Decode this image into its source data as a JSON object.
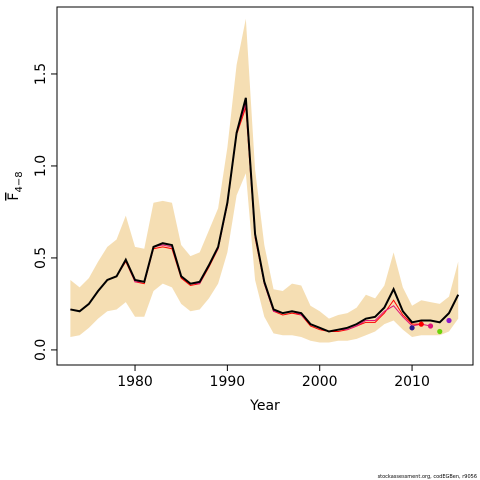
{
  "chart_data": {
    "type": "line",
    "xlabel": "Year",
    "ylabel": "F",
    "ylabel_sub": "4−8",
    "footer": "stockassessment.org, codEGBen, r9056",
    "xlim": [
      1971.55,
      2016.6
    ],
    "ylim": [
      -0.082,
      1.864
    ],
    "xticks": [
      1980,
      1990,
      2000,
      2010
    ],
    "yticks": [
      {
        "value": 0,
        "label": "0.0"
      },
      {
        "value": 0.5,
        "label": "0.5"
      },
      {
        "value": 1,
        "label": "1.0"
      },
      {
        "value": 1.5,
        "label": "1.5"
      }
    ],
    "x": [
      1973,
      1974,
      1975,
      1976,
      1977,
      1978,
      1979,
      1980,
      1981,
      1982,
      1983,
      1984,
      1985,
      1986,
      1987,
      1988,
      1989,
      1990,
      1991,
      1992,
      1993,
      1994,
      1995,
      1996,
      1997,
      1998,
      1999,
      2000,
      2001,
      2002,
      2003,
      2004,
      2005,
      2006,
      2007,
      2008,
      2009,
      2010,
      2011,
      2012,
      2013,
      2014,
      2015
    ],
    "band": {
      "color": "#f5deb3",
      "upper": [
        0.38,
        0.34,
        0.39,
        0.48,
        0.56,
        0.6,
        0.73,
        0.56,
        0.55,
        0.8,
        0.81,
        0.8,
        0.57,
        0.51,
        0.53,
        0.65,
        0.77,
        1.1,
        1.55,
        1.8,
        0.98,
        0.57,
        0.33,
        0.32,
        0.36,
        0.35,
        0.24,
        0.21,
        0.17,
        0.19,
        0.2,
        0.23,
        0.3,
        0.28,
        0.35,
        0.53,
        0.34,
        0.24,
        0.27,
        0.26,
        0.25,
        0.29,
        0.48
      ],
      "lower": [
        0.07,
        0.08,
        0.12,
        0.17,
        0.21,
        0.22,
        0.26,
        0.18,
        0.18,
        0.32,
        0.36,
        0.34,
        0.25,
        0.21,
        0.22,
        0.28,
        0.36,
        0.53,
        0.84,
        0.96,
        0.38,
        0.18,
        0.09,
        0.08,
        0.08,
        0.07,
        0.05,
        0.04,
        0.04,
        0.05,
        0.05,
        0.06,
        0.08,
        0.1,
        0.14,
        0.16,
        0.11,
        0.07,
        0.08,
        0.08,
        0.08,
        0.1,
        0.17
      ]
    },
    "series": [
      {
        "color": "#ff0000",
        "width": 1,
        "values": [
          0.22,
          0.21,
          0.25,
          0.32,
          0.38,
          0.4,
          0.48,
          0.37,
          0.36,
          0.55,
          0.56,
          0.55,
          0.39,
          0.35,
          0.36,
          0.45,
          0.55,
          0.79,
          1.17,
          1.32,
          0.61,
          0.36,
          0.21,
          0.19,
          0.2,
          0.19,
          0.13,
          0.11,
          0.1,
          0.1,
          0.11,
          0.13,
          0.15,
          0.15,
          0.2,
          0.27,
          0.19,
          0.14,
          0.14,
          null,
          null,
          null,
          null
        ]
      },
      {
        "color": "#e0157a",
        "width": 1,
        "values": [
          0.22,
          0.21,
          0.25,
          0.32,
          0.38,
          0.4,
          0.49,
          0.37,
          0.37,
          0.56,
          0.57,
          0.56,
          0.4,
          0.36,
          0.36,
          0.46,
          0.55,
          0.79,
          1.18,
          1.34,
          0.62,
          0.36,
          0.21,
          0.2,
          0.21,
          0.19,
          0.14,
          0.12,
          0.1,
          0.11,
          0.11,
          0.13,
          0.16,
          0.16,
          0.21,
          0.24,
          0.18,
          0.13,
          0.14,
          0.13,
          null,
          null,
          null
        ]
      },
      {
        "color": "#000000",
        "width": 2,
        "values": [
          0.22,
          0.21,
          0.25,
          0.32,
          0.38,
          0.4,
          0.49,
          0.38,
          0.37,
          0.56,
          0.58,
          0.57,
          0.4,
          0.36,
          0.37,
          0.46,
          0.56,
          0.8,
          1.18,
          1.37,
          0.63,
          0.37,
          0.22,
          0.2,
          0.21,
          0.2,
          0.14,
          0.12,
          0.1,
          0.11,
          0.12,
          0.14,
          0.17,
          0.18,
          0.23,
          0.33,
          0.21,
          0.15,
          0.16,
          0.16,
          0.15,
          0.2,
          0.3
        ]
      }
    ],
    "points": [
      {
        "color": "#2b1a8c",
        "x": 2010,
        "value": 0.12
      },
      {
        "color": "#ff0000",
        "x": 2011,
        "value": 0.14
      },
      {
        "color": "#e0157a",
        "x": 2012,
        "value": 0.13
      },
      {
        "color": "#6ad40a",
        "x": 2013,
        "value": 0.1
      },
      {
        "color": "#8a1ac8",
        "x": 2014,
        "value": 0.16
      }
    ]
  }
}
